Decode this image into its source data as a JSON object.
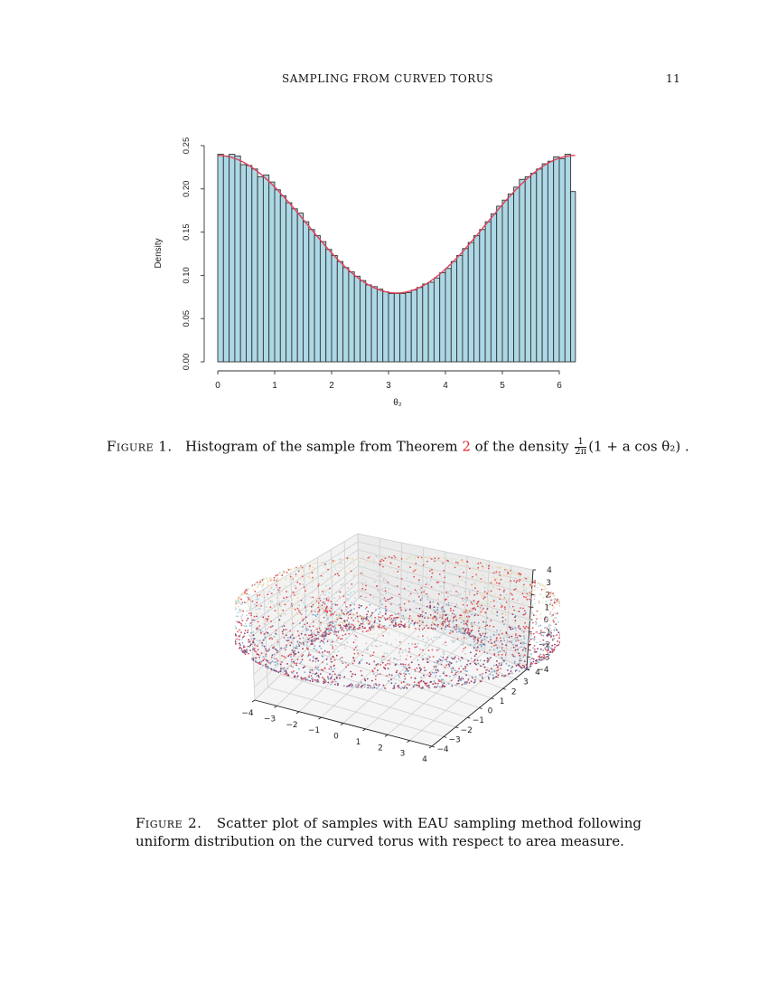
{
  "header": {
    "title": "SAMPLING FROM CURVED TORUS",
    "page_number": "11"
  },
  "figure1": {
    "label": "Figure 1.",
    "caption_pre": "Histogram of the sample from Theorem",
    "caption_ref": "2",
    "caption_mid": "of the density",
    "frac_num": "1",
    "frac_den": "2π",
    "caption_formula": "(1 + a cos θ₂) .",
    "colors": {
      "bar_fill": "#ADD8E6",
      "bar_edge": "#333333",
      "curve": "#E0405A"
    }
  },
  "figure2": {
    "label": "Figure 2.",
    "caption": "Scatter plot of samples with EAU sampling method following uniform distribution on the curved torus with respect to area measure."
  },
  "chart_data": [
    {
      "type": "bar",
      "title": "",
      "xlabel": "θ₂",
      "ylabel": "Density",
      "xlim": [
        0,
        6.2832
      ],
      "ylim": [
        0,
        0.25
      ],
      "xticks": [
        "0",
        "1",
        "2",
        "3",
        "4",
        "5",
        "6"
      ],
      "yticks": [
        "0.00",
        "0.05",
        "0.10",
        "0.15",
        "0.20",
        "0.25"
      ],
      "bin_width": 0.1,
      "bin_starts": [
        0.0,
        0.1,
        0.2,
        0.3,
        0.4,
        0.5,
        0.6,
        0.7,
        0.8,
        0.9,
        1.0,
        1.1,
        1.2,
        1.3,
        1.4,
        1.5,
        1.6,
        1.7,
        1.8,
        1.9,
        2.0,
        2.1,
        2.2,
        2.3,
        2.4,
        2.5,
        2.6,
        2.7,
        2.8,
        2.9,
        3.0,
        3.1,
        3.2,
        3.3,
        3.4,
        3.5,
        3.6,
        3.7,
        3.8,
        3.9,
        4.0,
        4.1,
        4.2,
        4.3,
        4.4,
        4.5,
        4.6,
        4.7,
        4.8,
        4.9,
        5.0,
        5.1,
        5.2,
        5.3,
        5.4,
        5.5,
        5.6,
        5.7,
        5.8,
        5.9,
        6.0,
        6.1,
        6.2
      ],
      "values": [
        0.24,
        0.238,
        0.24,
        0.238,
        0.228,
        0.227,
        0.223,
        0.214,
        0.216,
        0.208,
        0.199,
        0.192,
        0.184,
        0.177,
        0.172,
        0.162,
        0.153,
        0.146,
        0.139,
        0.13,
        0.123,
        0.116,
        0.109,
        0.104,
        0.099,
        0.094,
        0.089,
        0.087,
        0.084,
        0.081,
        0.079,
        0.079,
        0.079,
        0.08,
        0.083,
        0.086,
        0.09,
        0.092,
        0.097,
        0.103,
        0.108,
        0.116,
        0.123,
        0.131,
        0.138,
        0.146,
        0.153,
        0.162,
        0.171,
        0.18,
        0.187,
        0.194,
        0.202,
        0.211,
        0.214,
        0.218,
        0.223,
        0.229,
        0.232,
        0.237,
        0.235,
        0.24,
        0.197
      ],
      "overlay_curve": {
        "name": "density (1 + 0.5 cos θ₂)/(2π)",
        "max": 0.2387,
        "min": 0.0796
      },
      "grid": false,
      "legend": null
    },
    {
      "type": "scatter",
      "title": "",
      "subtype": "3d scatter (torus)",
      "xticks": [
        "−4",
        "−3",
        "−2",
        "−1",
        "0",
        "1",
        "2",
        "3",
        "4"
      ],
      "yticks": [
        "−4",
        "−3",
        "−2",
        "−1",
        "0",
        "1",
        "2",
        "3",
        "4"
      ],
      "zticks": [
        "−4",
        "−3",
        "−2",
        "−1",
        "0",
        "1",
        "2",
        "3",
        "4"
      ],
      "xlim": [
        -4,
        4
      ],
      "ylim": [
        -4,
        4
      ],
      "zlim": [
        -4,
        4
      ],
      "grid": true,
      "legend": null
    }
  ]
}
